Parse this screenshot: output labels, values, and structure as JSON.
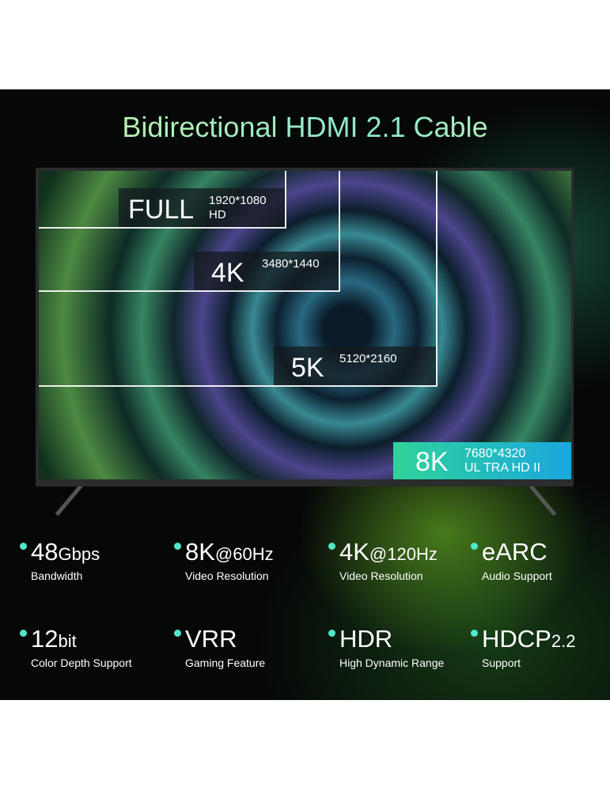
{
  "title": "Bidirectional HDMI 2.1 Cable",
  "resolutions": [
    {
      "name": "FULL",
      "name2": "HD",
      "res": "1920*1080"
    },
    {
      "name": "4K",
      "res": "3480*1440"
    },
    {
      "name": "5K",
      "res": "5120*2160"
    },
    {
      "name": "8K",
      "res": "7680*4320",
      "subtitle": "UL TRA HD II"
    }
  ],
  "features": [
    {
      "value": "48",
      "unit": "Gbps",
      "label": "Bandwidth"
    },
    {
      "value": "8K",
      "unit": "@60Hz",
      "label": "Video Resolution"
    },
    {
      "value": "4K",
      "unit": "@120Hz",
      "label": "Video Resolution"
    },
    {
      "value": "eARC",
      "unit": "",
      "label": "Audio Support"
    },
    {
      "value": "12",
      "unit": "bit",
      "label": "Color Depth Support"
    },
    {
      "value": "VRR",
      "unit": "",
      "label": "Gaming Feature"
    },
    {
      "value": "HDR",
      "unit": "",
      "label": "High Dynamic Range"
    },
    {
      "value": "HDCP",
      "unit": "2.2",
      "label": "Support"
    }
  ],
  "colors": {
    "bullet": "#4fe8c8",
    "badge_start": "#2fd39a",
    "badge_end": "#1aa7e0"
  }
}
